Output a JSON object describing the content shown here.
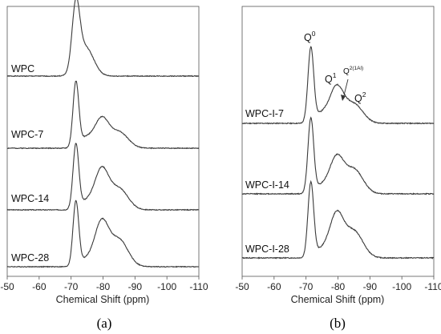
{
  "chart_data": [
    {
      "type": "line",
      "panel_label": "(a)",
      "xlabel": "Chemical Shift (ppm)",
      "xlim": [
        -50,
        -110
      ],
      "x_ticks": [
        "-50",
        "-60",
        "-70",
        "-80",
        "-90",
        "-100",
        "-110"
      ],
      "grid": false,
      "series": [
        {
          "name": "WPC",
          "peaks": [
            {
              "x": -71.5,
              "h": 1.0,
              "w": 1.2
            },
            {
              "x": -74.5,
              "h": 0.45,
              "w": 2.5
            }
          ]
        },
        {
          "name": "WPC-7",
          "peaks": [
            {
              "x": -71.5,
              "h": 1.0,
              "w": 0.9
            },
            {
              "x": -74.5,
              "h": 0.15,
              "w": 2.0
            },
            {
              "x": -79.5,
              "h": 0.45,
              "w": 2.2
            },
            {
              "x": -85.0,
              "h": 0.25,
              "w": 2.8
            }
          ]
        },
        {
          "name": "WPC-14",
          "peaks": [
            {
              "x": -71.5,
              "h": 1.0,
              "w": 0.9
            },
            {
              "x": -74.5,
              "h": 0.12,
              "w": 2.0
            },
            {
              "x": -79.5,
              "h": 0.62,
              "w": 2.2
            },
            {
              "x": -85.0,
              "h": 0.33,
              "w": 2.8
            }
          ]
        },
        {
          "name": "WPC-28",
          "peaks": [
            {
              "x": -71.5,
              "h": 1.0,
              "w": 0.9
            },
            {
              "x": -74.5,
              "h": 0.1,
              "w": 2.0
            },
            {
              "x": -79.5,
              "h": 0.68,
              "w": 2.2
            },
            {
              "x": -85.0,
              "h": 0.42,
              "w": 2.8
            }
          ]
        }
      ]
    },
    {
      "type": "line",
      "panel_label": "(b)",
      "xlabel": "Chemical Shift (ppm)",
      "xlim": [
        -50,
        -110
      ],
      "x_ticks": [
        "-50",
        "-60",
        "-70",
        "-80",
        "-90",
        "-100",
        "-110"
      ],
      "grid": false,
      "series": [
        {
          "name": "WPC-I-7",
          "peaks": [
            {
              "x": -71.5,
              "h": 1.0,
              "w": 0.9
            },
            {
              "x": -74.5,
              "h": 0.12,
              "w": 2.0
            },
            {
              "x": -79.5,
              "h": 0.48,
              "w": 2.2
            },
            {
              "x": -85.0,
              "h": 0.26,
              "w": 2.8
            }
          ]
        },
        {
          "name": "WPC-I-14",
          "peaks": [
            {
              "x": -71.5,
              "h": 1.0,
              "w": 0.9
            },
            {
              "x": -74.5,
              "h": 0.1,
              "w": 2.0
            },
            {
              "x": -79.5,
              "h": 0.48,
              "w": 2.2
            },
            {
              "x": -85.0,
              "h": 0.33,
              "w": 2.8
            }
          ]
        },
        {
          "name": "WPC-I-28",
          "peaks": [
            {
              "x": -71.5,
              "h": 1.0,
              "w": 0.9
            },
            {
              "x": -74.5,
              "h": 0.1,
              "w": 2.0
            },
            {
              "x": -79.5,
              "h": 0.58,
              "w": 2.2
            },
            {
              "x": -85.0,
              "h": 0.36,
              "w": 2.8
            }
          ]
        }
      ],
      "annotations": [
        {
          "base": "Q",
          "sup": "0",
          "x": -71.5
        },
        {
          "base": "Q",
          "sup": "1",
          "x": -79.5
        },
        {
          "base": "Q",
          "sup": "2(1Al)",
          "x": -82.0
        },
        {
          "base": "Q",
          "sup": "2",
          "x": -85.5
        }
      ]
    }
  ]
}
